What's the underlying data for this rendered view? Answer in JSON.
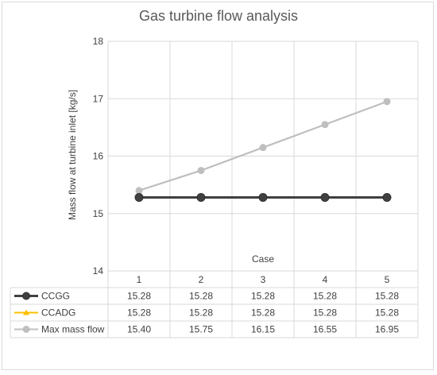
{
  "chart_data": {
    "type": "line",
    "title": "Gas turbine flow analysis",
    "xlabel": "Case",
    "ylabel": "Mass flow at turbine inlet [kg/s]",
    "categories": [
      "1",
      "2",
      "3",
      "4",
      "5"
    ],
    "ylim": [
      14,
      18
    ],
    "yticks": [
      "14",
      "15",
      "16",
      "17",
      "18"
    ],
    "grid": true,
    "legend": "data table",
    "series": [
      {
        "name": "CCGG",
        "values": [
          15.28,
          15.28,
          15.28,
          15.28,
          15.28
        ],
        "labels": [
          "15.28",
          "15.28",
          "15.28",
          "15.28",
          "15.28"
        ],
        "color": "#404040",
        "marker": "circle"
      },
      {
        "name": "CCADG",
        "values": [
          15.28,
          15.28,
          15.28,
          15.28,
          15.28
        ],
        "labels": [
          "15.28",
          "15.28",
          "15.28",
          "15.28",
          "15.28"
        ],
        "color": "#ffc000",
        "marker": "triangle"
      },
      {
        "name": "Max mass flow",
        "values": [
          15.4,
          15.75,
          16.15,
          16.55,
          16.95
        ],
        "labels": [
          "15.40",
          "15.75",
          "16.15",
          "16.55",
          "16.95"
        ],
        "color": "#bfbfbf",
        "marker": "circle"
      }
    ]
  }
}
